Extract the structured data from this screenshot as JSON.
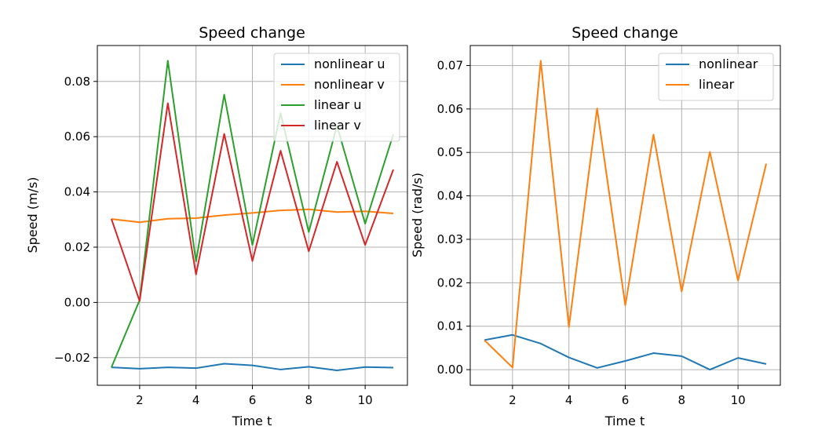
{
  "chart_data": [
    {
      "type": "line",
      "title": "Speed change",
      "xlabel": "Time t",
      "ylabel": "Speed (m/s)",
      "xlim": [
        0.5,
        11.5
      ],
      "ylim": [
        -0.03,
        0.093
      ],
      "xticks": [
        2,
        4,
        6,
        8,
        10
      ],
      "xtick_labels": [
        "2",
        "4",
        "6",
        "8",
        "10"
      ],
      "yticks": [
        -0.02,
        0.0,
        0.02,
        0.04,
        0.06,
        0.08
      ],
      "ytick_labels": [
        "−0.02",
        "0.00",
        "0.02",
        "0.04",
        "0.06",
        "0.08"
      ],
      "grid": true,
      "legend_position": "top-right",
      "x": [
        1,
        2,
        3,
        4,
        5,
        6,
        7,
        8,
        9,
        10,
        11
      ],
      "series": [
        {
          "name": "nonlinear u",
          "color": "#1f77b4",
          "values": [
            -0.0235,
            -0.024,
            -0.0235,
            -0.0238,
            -0.0222,
            -0.0228,
            -0.0243,
            -0.0233,
            -0.0246,
            -0.0234,
            -0.0236
          ]
        },
        {
          "name": "nonlinear v",
          "color": "#ff7f0e",
          "values": [
            0.0302,
            0.029,
            0.0303,
            0.0305,
            0.0316,
            0.0324,
            0.0333,
            0.0337,
            0.0327,
            0.033,
            0.0322
          ]
        },
        {
          "name": "linear u",
          "color": "#2ca02c",
          "values": [
            -0.0235,
            0.0008,
            0.0875,
            0.0148,
            0.0752,
            0.0208,
            0.0685,
            0.0255,
            0.064,
            0.0285,
            0.0609
          ]
        },
        {
          "name": "linear v",
          "color": "#d62728",
          "values": [
            0.0302,
            0.0005,
            0.0721,
            0.0101,
            0.061,
            0.015,
            0.0549,
            0.0185,
            0.0509,
            0.0208,
            0.0481
          ]
        }
      ]
    },
    {
      "type": "line",
      "title": "Speed change",
      "xlabel": "Time t",
      "ylabel": "Speed (rad/s)",
      "xlim": [
        0.5,
        11.5
      ],
      "ylim": [
        -0.0036,
        0.0746
      ],
      "xticks": [
        2,
        4,
        6,
        8,
        10
      ],
      "xtick_labels": [
        "2",
        "4",
        "6",
        "8",
        "10"
      ],
      "yticks": [
        0.0,
        0.01,
        0.02,
        0.03,
        0.04,
        0.05,
        0.06,
        0.07
      ],
      "ytick_labels": [
        "0.00",
        "0.01",
        "0.02",
        "0.03",
        "0.04",
        "0.05",
        "0.06",
        "0.07"
      ],
      "grid": true,
      "legend_position": "top-right",
      "x": [
        1,
        2,
        3,
        4,
        5,
        6,
        7,
        8,
        9,
        10,
        11
      ],
      "series": [
        {
          "name": "nonlinear",
          "color": "#1f77b4",
          "values": [
            0.0068,
            0.008,
            0.006,
            0.0028,
            0.0004,
            0.002,
            0.0038,
            0.0031,
            0.0,
            0.0027,
            0.0013
          ]
        },
        {
          "name": "linear",
          "color": "#ff7f0e",
          "values": [
            0.0068,
            0.0005,
            0.0711,
            0.0098,
            0.0601,
            0.0148,
            0.0541,
            0.018,
            0.0501,
            0.0205,
            0.0474
          ]
        }
      ]
    }
  ]
}
